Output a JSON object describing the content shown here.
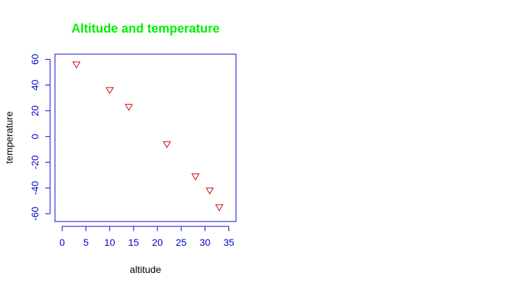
{
  "chart_data": {
    "type": "scatter",
    "title": "Altitude and temperature",
    "xlabel": "altitude",
    "ylabel": "temperature",
    "xlim": [
      -1.5,
      36.5
    ],
    "ylim": [
      -66,
      64
    ],
    "xticks": [
      0,
      5,
      10,
      15,
      20,
      25,
      30,
      35
    ],
    "yticks": [
      -60,
      -40,
      -20,
      0,
      20,
      40,
      60
    ],
    "xtick_labels": [
      "0",
      "5",
      "10",
      "15",
      "20",
      "25",
      "30",
      "35"
    ],
    "ytick_labels": [
      "-60",
      "-40",
      "-20",
      "0",
      "20",
      "40",
      "60"
    ],
    "grid": false,
    "marker": "inverted-triangle",
    "series": [
      {
        "x": [
          3,
          10,
          14,
          22,
          28,
          31,
          33
        ],
        "y": [
          56,
          36,
          23,
          -6,
          -31,
          -42,
          -55
        ]
      }
    ],
    "colors": {
      "title": "#00ee00",
      "axis": "#0000cd",
      "tick_labels": "#0000cd",
      "axis_labels": "#000000",
      "points": "#cc0000"
    }
  }
}
